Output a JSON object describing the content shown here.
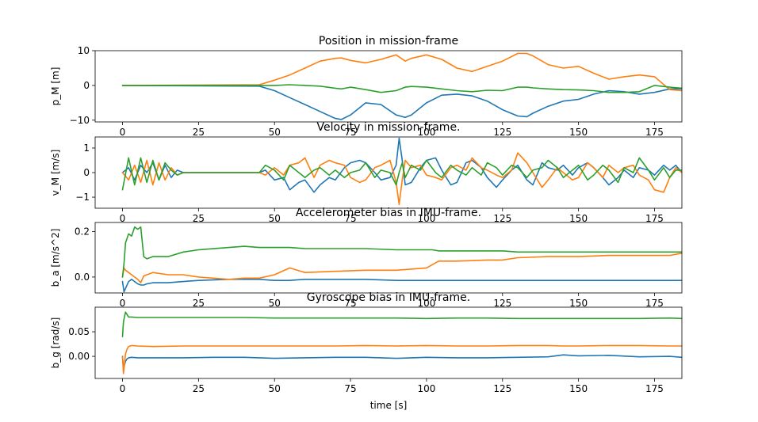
{
  "figure": {
    "xlabel": "time [s]"
  },
  "chart_data": [
    {
      "type": "line",
      "title": "Position in mission-frame",
      "xlabel": "",
      "ylabel": "p_M [m]",
      "xlim": [
        -9,
        184
      ],
      "ylim": [
        -10.5,
        10
      ],
      "xticks": [
        0,
        25,
        50,
        75,
        100,
        125,
        150,
        175
      ],
      "xtick_labels": [
        "0",
        "25",
        "50",
        "75",
        "100",
        "125",
        "150",
        "175"
      ],
      "yticks": [
        -10,
        0,
        10
      ],
      "ytick_labels": [
        "−10",
        "0",
        "10"
      ],
      "grid": false,
      "x": [
        0,
        45,
        50,
        55,
        60,
        65,
        70,
        72,
        75,
        80,
        85,
        90,
        93,
        95,
        100,
        105,
        110,
        115,
        120,
        125,
        130,
        133,
        135,
        140,
        145,
        150,
        155,
        160,
        165,
        170,
        175,
        180,
        184
      ],
      "series": [
        {
          "color": "#1f77b4",
          "values": [
            0,
            -0.2,
            -1.5,
            -3.5,
            -5.5,
            -7.5,
            -9.5,
            -9.8,
            -8.5,
            -5,
            -5.5,
            -8.5,
            -9.2,
            -8.5,
            -5,
            -2.8,
            -2.5,
            -3,
            -4.5,
            -7,
            -8.8,
            -9,
            -8,
            -6,
            -4.5,
            -4,
            -2.5,
            -1.5,
            -1.8,
            -2.5,
            -2,
            -1,
            -1
          ]
        },
        {
          "color": "#ff7f0e",
          "values": [
            0,
            0.2,
            1.5,
            3,
            5,
            7,
            7.8,
            7.9,
            7.2,
            6.5,
            7.5,
            8.8,
            7,
            7.8,
            8.8,
            7.5,
            5,
            4,
            5.5,
            7,
            9.2,
            9.2,
            8.5,
            6,
            5,
            5.5,
            3.5,
            1.8,
            2.5,
            3,
            2.5,
            -1.2,
            -1.5
          ]
        },
        {
          "color": "#2ca02c",
          "values": [
            0,
            0,
            0,
            0.2,
            0,
            -0.2,
            -0.8,
            -1,
            -0.5,
            -1.2,
            -2,
            -1.5,
            -0.5,
            -0.3,
            -0.5,
            -1,
            -1.5,
            -1.8,
            -1.4,
            -1.5,
            -0.5,
            -0.5,
            -0.7,
            -1,
            -1.2,
            -1.3,
            -1.5,
            -2,
            -2,
            -1.8,
            0,
            -0.5,
            -0.8
          ]
        }
      ]
    },
    {
      "type": "line",
      "title": "Velocity in mission-frame.",
      "xlabel": "",
      "ylabel": "v_M [m/s]",
      "xlim": [
        -9,
        184
      ],
      "ylim": [
        -1.45,
        1.45
      ],
      "xticks": [
        0,
        25,
        50,
        75,
        100,
        125,
        150,
        175
      ],
      "xtick_labels": [
        "0",
        "25",
        "50",
        "75",
        "100",
        "125",
        "150",
        "175"
      ],
      "yticks": [
        -1,
        0,
        1
      ],
      "ytick_labels": [
        "−1",
        "0",
        "1"
      ],
      "grid": false,
      "x": [
        0,
        2,
        4,
        6,
        8,
        10,
        12,
        14,
        16,
        18,
        20,
        45,
        47,
        50,
        53,
        55,
        58,
        60,
        63,
        65,
        68,
        70,
        73,
        75,
        78,
        80,
        83,
        85,
        88,
        90,
        91,
        92,
        93,
        95,
        98,
        100,
        103,
        105,
        108,
        110,
        113,
        115,
        118,
        120,
        123,
        125,
        128,
        130,
        133,
        135,
        138,
        140,
        143,
        145,
        148,
        150,
        153,
        155,
        158,
        160,
        163,
        165,
        168,
        170,
        173,
        175,
        178,
        180,
        182,
        184
      ],
      "series": [
        {
          "color": "#1f77b4",
          "values": [
            0,
            0.2,
            -0.3,
            0.3,
            0,
            0.4,
            -0.3,
            0.3,
            -0.2,
            0.1,
            0,
            0,
            0.1,
            -0.3,
            -0.2,
            -0.7,
            -0.4,
            -0.3,
            -0.8,
            -0.5,
            -0.2,
            -0.3,
            0.2,
            0.4,
            0.5,
            0.4,
            0,
            -0.3,
            -0.2,
            0.3,
            1.4,
            0.5,
            -0.5,
            -0.4,
            0.2,
            0.5,
            0.6,
            0.1,
            -0.5,
            -0.4,
            0.4,
            0.5,
            0.2,
            -0.2,
            -0.6,
            -0.3,
            0.1,
            0.3,
            -0.3,
            -0.5,
            0.4,
            0.2,
            0.1,
            0.3,
            -0.1,
            0.2,
            0.4,
            0.2,
            -0.2,
            -0.5,
            -0.2,
            0.1,
            -0.2,
            0.2,
            0.1,
            -0.1,
            0.3,
            0.1,
            0.3,
            0
          ]
        },
        {
          "color": "#ff7f0e",
          "values": [
            0,
            -0.3,
            0.3,
            -0.4,
            0.5,
            -0.5,
            0.4,
            -0.3,
            0.2,
            -0.1,
            0,
            0,
            -0.1,
            0.2,
            -0.1,
            0.3,
            0.4,
            0.6,
            -0.2,
            0.3,
            0.5,
            0.4,
            0.3,
            -0.2,
            -0.4,
            -0.3,
            0.2,
            0.3,
            0.5,
            -0.4,
            -1.3,
            -0.3,
            0.5,
            0.2,
            0.3,
            -0.1,
            -0.2,
            -0.3,
            0.2,
            0.3,
            0.1,
            0.6,
            0.2,
            0.1,
            -0.1,
            -0.2,
            0.1,
            0.8,
            0.4,
            0,
            -0.6,
            -0.3,
            0.2,
            0,
            -0.3,
            -0.2,
            0.4,
            0.2,
            -0.2,
            0.3,
            0,
            0.2,
            0.3,
            -0.1,
            -0.3,
            -0.7,
            -0.8,
            -0.2,
            0.2,
            0
          ]
        },
        {
          "color": "#2ca02c",
          "values": [
            -0.7,
            0.6,
            -0.5,
            0.6,
            -0.4,
            0.5,
            -0.3,
            0.4,
            0.1,
            -0.1,
            0,
            0,
            0.3,
            0.1,
            -0.3,
            0.3,
            0,
            -0.2,
            0.1,
            0.2,
            -0.1,
            0.1,
            -0.2,
            0,
            0.1,
            0.4,
            -0.2,
            0.1,
            0,
            -0.5,
            0,
            0.4,
            -0.2,
            0.3,
            0.1,
            0.5,
            0,
            -0.2,
            0.3,
            0.1,
            -0.1,
            0.2,
            -0.1,
            0.4,
            0.2,
            -0.1,
            0.3,
            0.2,
            -0.2,
            0.1,
            0.2,
            0.5,
            0.2,
            -0.2,
            0.1,
            0.3,
            -0.3,
            -0.1,
            0.3,
            0.1,
            -0.4,
            0.2,
            0,
            0.6,
            0.1,
            -0.3,
            0.2,
            -0.2,
            0.1,
            0.1
          ]
        }
      ]
    },
    {
      "type": "line",
      "title": "Accelerometer bias in IMU-frame.",
      "xlabel": "",
      "ylabel": "b_a [m/s^2]",
      "xlim": [
        -9,
        184
      ],
      "ylim": [
        -0.07,
        0.24
      ],
      "xticks": [
        0,
        25,
        50,
        75,
        100,
        125,
        150,
        175
      ],
      "xtick_labels": [
        "0",
        "25",
        "50",
        "75",
        "100",
        "125",
        "150",
        "175"
      ],
      "yticks": [
        0,
        0.2
      ],
      "ytick_labels": [
        "0.0",
        "0.2"
      ],
      "grid": false,
      "x": [
        0,
        0.5,
        1,
        2,
        3,
        4,
        5,
        6,
        7,
        8,
        10,
        15,
        20,
        25,
        35,
        40,
        45,
        50,
        55,
        60,
        70,
        80,
        90,
        100,
        102,
        104,
        110,
        120,
        125,
        130,
        140,
        150,
        160,
        170,
        180,
        184
      ],
      "series": [
        {
          "color": "#1f77b4",
          "values": [
            -0.02,
            -0.065,
            -0.05,
            -0.02,
            -0.01,
            -0.02,
            -0.03,
            -0.035,
            -0.035,
            -0.03,
            -0.025,
            -0.025,
            -0.02,
            -0.015,
            -0.01,
            -0.01,
            -0.01,
            -0.015,
            -0.015,
            -0.01,
            -0.01,
            -0.01,
            -0.015,
            -0.015,
            -0.015,
            -0.015,
            -0.015,
            -0.015,
            -0.015,
            -0.015,
            -0.015,
            -0.015,
            -0.015,
            -0.015,
            -0.015,
            -0.015
          ]
        },
        {
          "color": "#ff7f0e",
          "values": [
            0,
            0.04,
            0.03,
            0.02,
            0.01,
            0,
            -0.01,
            -0.025,
            0.005,
            0.01,
            0.02,
            0.01,
            0.01,
            0,
            -0.01,
            -0.005,
            -0.005,
            0.01,
            0.04,
            0.02,
            0.025,
            0.03,
            0.03,
            0.04,
            0.055,
            0.07,
            0.07,
            0.075,
            0.075,
            0.085,
            0.09,
            0.09,
            0.095,
            0.095,
            0.095,
            0.105
          ]
        },
        {
          "color": "#2ca02c",
          "values": [
            0,
            0.06,
            0.15,
            0.19,
            0.18,
            0.22,
            0.21,
            0.22,
            0.09,
            0.08,
            0.09,
            0.09,
            0.11,
            0.12,
            0.13,
            0.135,
            0.13,
            0.13,
            0.13,
            0.125,
            0.125,
            0.125,
            0.12,
            0.12,
            0.12,
            0.115,
            0.115,
            0.115,
            0.115,
            0.11,
            0.11,
            0.11,
            0.11,
            0.11,
            0.11,
            0.11
          ]
        }
      ]
    },
    {
      "type": "line",
      "title": "Gyroscope bias in IMU-frame.",
      "xlabel": "time [s]",
      "ylabel": "b_g [rad/s]",
      "xlim": [
        -9,
        184
      ],
      "ylim": [
        -0.045,
        0.1
      ],
      "xticks": [
        0,
        25,
        50,
        75,
        100,
        125,
        150,
        175
      ],
      "xtick_labels": [
        "0",
        "25",
        "50",
        "75",
        "100",
        "125",
        "150",
        "175"
      ],
      "yticks": [
        0,
        0.05
      ],
      "ytick_labels": [
        "0.00",
        "0.05"
      ],
      "grid": false,
      "x": [
        0,
        0.3,
        1,
        1.5,
        2,
        3,
        5,
        10,
        20,
        30,
        40,
        50,
        60,
        70,
        80,
        90,
        100,
        110,
        120,
        130,
        140,
        145,
        150,
        160,
        170,
        180,
        184
      ],
      "series": [
        {
          "color": "#1f77b4",
          "values": [
            0,
            -0.025,
            -0.01,
            -0.005,
            -0.003,
            -0.002,
            -0.003,
            -0.003,
            -0.003,
            -0.002,
            -0.002,
            -0.004,
            -0.003,
            -0.002,
            -0.002,
            -0.004,
            -0.002,
            -0.003,
            -0.003,
            -0.002,
            -0.001,
            0.003,
            0.001,
            0.002,
            -0.001,
            0,
            -0.002
          ]
        },
        {
          "color": "#ff7f0e",
          "values": [
            0,
            -0.035,
            0.005,
            0.015,
            0.02,
            0.022,
            0.021,
            0.02,
            0.021,
            0.021,
            0.021,
            0.021,
            0.021,
            0.021,
            0.022,
            0.021,
            0.022,
            0.021,
            0.021,
            0.022,
            0.022,
            0.021,
            0.021,
            0.022,
            0.022,
            0.021,
            0.021
          ]
        },
        {
          "color": "#2ca02c",
          "values": [
            0.04,
            0.07,
            0.09,
            0.085,
            0.08,
            0.08,
            0.079,
            0.079,
            0.079,
            0.079,
            0.079,
            0.078,
            0.078,
            0.078,
            0.078,
            0.078,
            0.077,
            0.078,
            0.078,
            0.077,
            0.077,
            0.077,
            0.077,
            0.077,
            0.077,
            0.078,
            0.077
          ]
        }
      ]
    }
  ]
}
